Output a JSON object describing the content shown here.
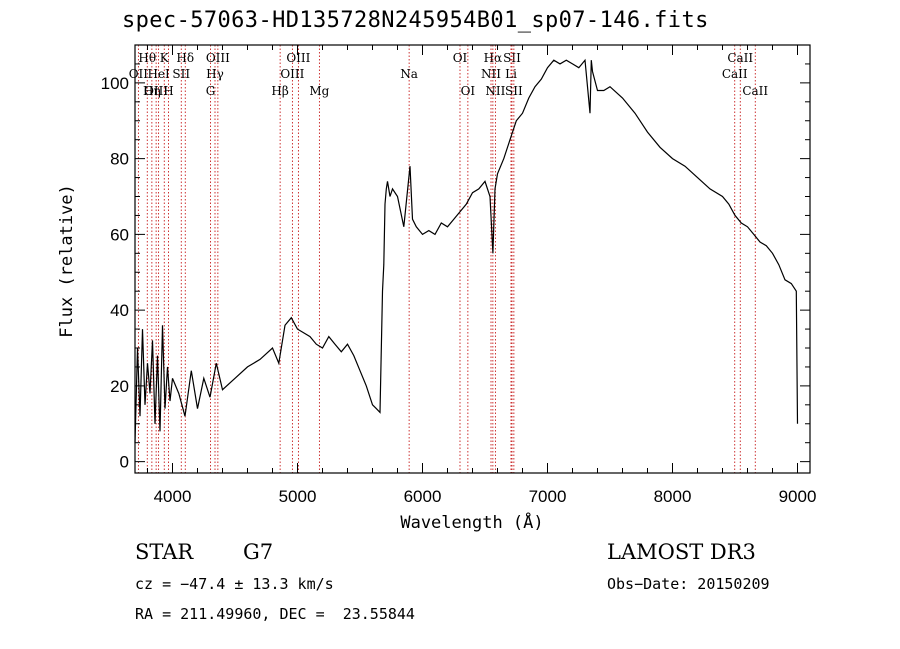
{
  "title": "spec-57063-HD135728N245954B01_sp07-146.fits",
  "footer": {
    "object_class": "STAR",
    "subclass": "G7",
    "survey": "LAMOST DR3",
    "cz": "cz = −47.4 ± 13.3 km/s",
    "obs_date": "Obs−Date: 20150209",
    "coords": "RA = 211.49960, DEC =  23.55844"
  },
  "colors": {
    "spectrum": "#000000",
    "line_marker": "#c00000",
    "axes": "#000000"
  },
  "chart_data": {
    "type": "line",
    "xlabel": "Wavelength (Å)",
    "ylabel": "Flux (relative)",
    "xlim": [
      3700,
      9100
    ],
    "ylim": [
      -3,
      110
    ],
    "xticks": [
      4000,
      5000,
      6000,
      7000,
      8000,
      9000
    ],
    "yticks": [
      0,
      20,
      40,
      60,
      80,
      100
    ],
    "grid": false,
    "series": [
      {
        "x": [
          3700,
          3720,
          3740,
          3760,
          3780,
          3800,
          3820,
          3840,
          3860,
          3880,
          3900,
          3920,
          3940,
          3960,
          3980,
          4000,
          4050,
          4100,
          4150,
          4200,
          4250,
          4300,
          4350,
          4400,
          4500,
          4600,
          4700,
          4800,
          4850,
          4900,
          4950,
          5000,
          5050,
          5100,
          5150,
          5200,
          5250,
          5300,
          5350,
          5400,
          5450,
          5500,
          5550,
          5600,
          5630,
          5660,
          5680,
          5690,
          5700,
          5710,
          5720,
          5740,
          5760,
          5800,
          5850,
          5900,
          5920,
          5950,
          6000,
          6050,
          6100,
          6150,
          6200,
          6250,
          6300,
          6350,
          6400,
          6450,
          6500,
          6540,
          6563,
          6580,
          6600,
          6650,
          6700,
          6750,
          6800,
          6850,
          6900,
          6950,
          7000,
          7050,
          7100,
          7150,
          7200,
          7250,
          7300,
          7340,
          7350,
          7360,
          7400,
          7450,
          7500,
          7600,
          7700,
          7800,
          7900,
          8000,
          8100,
          8200,
          8300,
          8400,
          8450,
          8500,
          8550,
          8600,
          8650,
          8700,
          8750,
          8800,
          8850,
          8900,
          8950,
          8990,
          9000
        ],
        "y": [
          5,
          30,
          12,
          35,
          15,
          26,
          18,
          32,
          10,
          28,
          8,
          36,
          14,
          25,
          16,
          22,
          18,
          12,
          24,
          14,
          22,
          17,
          26,
          19,
          22,
          25,
          27,
          30,
          26,
          36,
          38,
          35,
          34,
          33,
          31,
          30,
          33,
          31,
          29,
          31,
          28,
          24,
          20,
          15,
          14,
          13,
          45,
          52,
          68,
          72,
          74,
          70,
          72,
          70,
          62,
          78,
          64,
          62,
          60,
          61,
          60,
          63,
          62,
          64,
          66,
          68,
          71,
          72,
          74,
          70,
          55,
          72,
          76,
          80,
          85,
          90,
          92,
          96,
          99,
          101,
          104,
          106,
          105,
          106,
          105,
          104,
          106,
          92,
          106,
          103,
          98,
          98,
          99,
          96,
          92,
          87,
          83,
          80,
          78,
          75,
          72,
          70,
          68,
          65,
          63,
          62,
          60,
          58,
          57,
          55,
          52,
          48,
          47,
          45,
          10
        ]
      }
    ],
    "line_markers": [
      {
        "label": "Hθ",
        "x": 3798,
        "row": 1
      },
      {
        "label": "OII",
        "x": 3727,
        "row": 2
      },
      {
        "label": "Hη",
        "x": 3835,
        "row": 3
      },
      {
        "label": "OIII",
        "x": 3869,
        "row": 3
      },
      {
        "label": "K",
        "x": 3934,
        "row": 1
      },
      {
        "label": "HeI",
        "x": 3889,
        "row": 2
      },
      {
        "label": "H",
        "x": 3968,
        "row": 3
      },
      {
        "label": "SII",
        "x": 4070,
        "row": 2
      },
      {
        "label": "Hδ",
        "x": 4102,
        "row": 1
      },
      {
        "label": "OIII",
        "x": 4363,
        "row": 1
      },
      {
        "label": "Hγ",
        "x": 4340,
        "row": 2
      },
      {
        "label": "G",
        "x": 4304,
        "row": 3
      },
      {
        "label": "Hβ",
        "x": 4861,
        "row": 3
      },
      {
        "label": "OIII",
        "x": 5007,
        "row": 1
      },
      {
        "label": "OIII",
        "x": 4959,
        "row": 2
      },
      {
        "label": "Mg",
        "x": 5175,
        "row": 3
      },
      {
        "label": "Na",
        "x": 5893,
        "row": 2
      },
      {
        "label": "OI",
        "x": 6300,
        "row": 1
      },
      {
        "label": "OI",
        "x": 6363,
        "row": 3
      },
      {
        "label": "Hα",
        "x": 6563,
        "row": 1
      },
      {
        "label": "NII",
        "x": 6548,
        "row": 2
      },
      {
        "label": "NII",
        "x": 6583,
        "row": 3
      },
      {
        "label": "SII",
        "x": 6716,
        "row": 1
      },
      {
        "label": "Li",
        "x": 6708,
        "row": 2
      },
      {
        "label": "SII",
        "x": 6731,
        "row": 3
      },
      {
        "label": "CaII",
        "x": 8542,
        "row": 1
      },
      {
        "label": "CaII",
        "x": 8498,
        "row": 2
      },
      {
        "label": "CaII",
        "x": 8662,
        "row": 3
      }
    ]
  }
}
